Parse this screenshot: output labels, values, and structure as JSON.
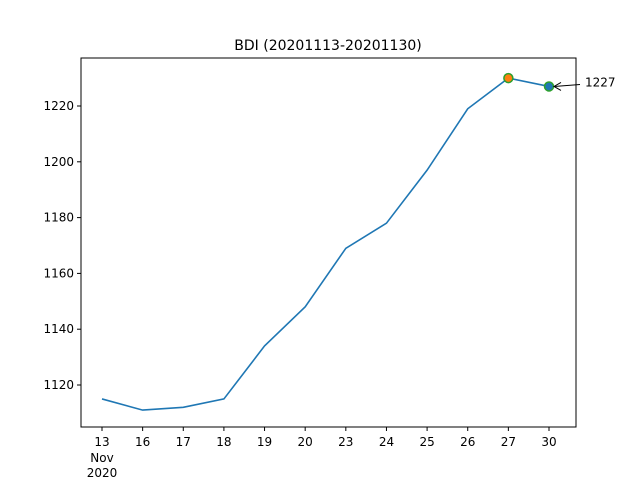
{
  "chart_data": {
    "type": "line",
    "title": "BDI (20201113-20201130)",
    "xlabel": "",
    "ylabel": "",
    "categories": [
      "13",
      "16",
      "17",
      "18",
      "19",
      "20",
      "23",
      "24",
      "25",
      "26",
      "27",
      "30"
    ],
    "x_sublabels": [
      "Nov",
      "2020"
    ],
    "values": [
      1115,
      1111,
      1112,
      1115,
      1134,
      1148,
      1169,
      1178,
      1197,
      1219,
      1230,
      1227
    ],
    "ylim": [
      1105,
      1238
    ],
    "yticks": [
      1120,
      1140,
      1160,
      1180,
      1200,
      1220
    ],
    "grid": false,
    "line_color": "#1f77b4",
    "highlights": [
      {
        "category": "27",
        "value": 1230,
        "fill": "#ff7f0e",
        "edge": "#2ca02c"
      },
      {
        "category": "30",
        "value": 1227,
        "fill": "#1f77b4",
        "edge": "#2ca02c"
      }
    ],
    "annotation": {
      "text": "1227",
      "category": "30",
      "value": 1227
    }
  }
}
